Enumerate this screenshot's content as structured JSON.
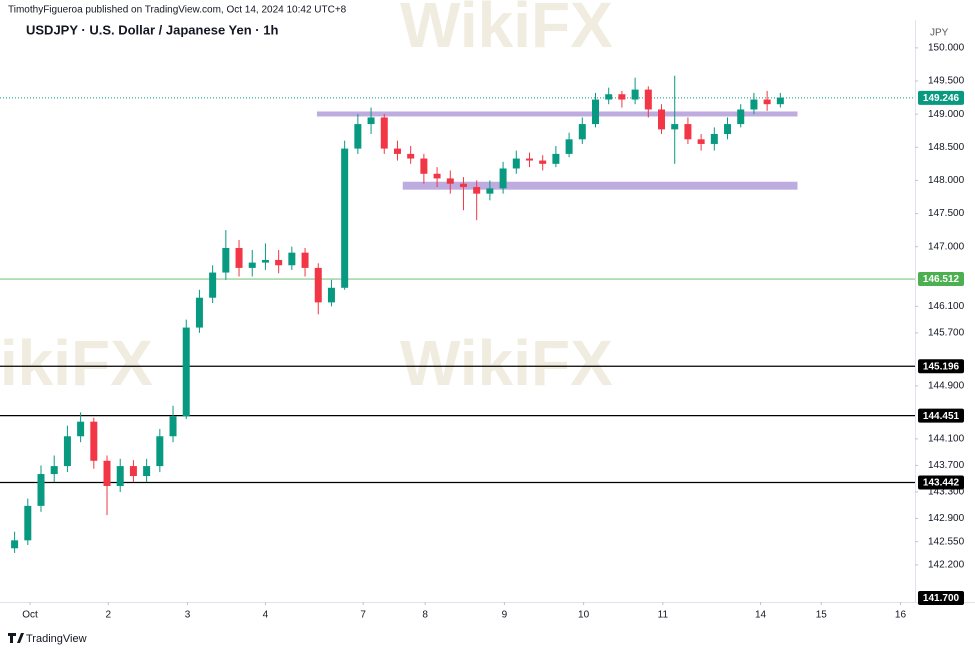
{
  "chart_data": {
    "type": "candlestick",
    "header": "TimothyFigueroa published on TradingView.com, Oct 14, 2024 10:42 UTC+8",
    "title": "USDJPY · U.S. Dollar / Japanese Yen · 1h",
    "y_unit": "JPY",
    "watermark": "WikiFX",
    "footer": "TradingView",
    "up_color": "#089981",
    "down_color": "#f23645",
    "xlim": [
      0,
      68.7
    ],
    "xticks": [
      {
        "value": 1.67,
        "label": "Oct"
      },
      {
        "value": 7.6,
        "label": "2"
      },
      {
        "value": 13.6,
        "label": "3"
      },
      {
        "value": 19.5,
        "label": "4"
      },
      {
        "value": 26.9,
        "label": "7"
      },
      {
        "value": 31.6,
        "label": "8"
      },
      {
        "value": 37.6,
        "label": "9"
      },
      {
        "value": 43.6,
        "label": "10"
      },
      {
        "value": 49.6,
        "label": "11"
      },
      {
        "value": 57.0,
        "label": "14"
      },
      {
        "value": 61.6,
        "label": "15"
      },
      {
        "value": 67.6,
        "label": "16"
      }
    ],
    "ylim": [
      141.7,
      150.42
    ],
    "yticks": [
      {
        "value": 150,
        "label": "150.000"
      },
      {
        "value": 149.5,
        "label": "149.500"
      },
      {
        "value": 149,
        "label": "149.000"
      },
      {
        "value": 148.5,
        "label": "148.500"
      },
      {
        "value": 148,
        "label": "148.000"
      },
      {
        "value": 147.5,
        "label": "147.500"
      },
      {
        "value": 147,
        "label": "147.000"
      },
      {
        "value": 146.1,
        "label": "146.100"
      },
      {
        "value": 145.7,
        "label": "145.700"
      },
      {
        "value": 144.9,
        "label": "144.900"
      },
      {
        "value": 144.1,
        "label": "144.100"
      },
      {
        "value": 143.7,
        "label": "143.700"
      },
      {
        "value": 143.3,
        "label": "143.300"
      },
      {
        "value": 142.9,
        "label": "142.900"
      },
      {
        "value": 142.55,
        "label": "142.550"
      },
      {
        "value": 142.2,
        "label": "142.200"
      }
    ],
    "open": [
      142.45,
      142.57,
      143.09,
      143.57,
      143.69,
      144.14,
      144.36,
      143.77,
      143.39,
      143.69,
      143.54,
      143.69,
      144.14,
      144.44,
      145.78,
      146.23,
      146.61,
      146.98,
      146.68,
      146.76,
      146.8,
      146.72,
      146.91,
      146.68,
      146.16,
      146.38,
      148.48,
      148.85,
      148.95,
      148.48,
      148.4,
      148.33,
      148.1,
      148.03,
      147.95,
      147.9,
      147.8,
      147.88,
      148.18,
      148.33,
      148.3,
      148.25,
      148.4,
      148.62,
      148.85,
      149.22,
      149.3,
      149.22,
      149.37,
      149.07,
      148.77,
      148.85,
      148.62,
      148.55,
      148.7,
      148.85,
      149.07,
      149.22,
      149.15
    ],
    "high": [
      142.7,
      143.2,
      143.7,
      143.85,
      144.3,
      144.5,
      144.42,
      143.85,
      143.8,
      143.78,
      143.8,
      144.25,
      144.6,
      145.9,
      146.35,
      146.72,
      147.25,
      147.1,
      146.95,
      147.05,
      146.95,
      147.0,
      146.98,
      146.75,
      146.5,
      148.6,
      149.0,
      149.1,
      149.0,
      148.6,
      148.52,
      148.4,
      148.2,
      148.15,
      148.05,
      148.0,
      148.0,
      148.28,
      148.45,
      148.42,
      148.38,
      148.52,
      148.72,
      148.95,
      149.32,
      149.4,
      149.35,
      149.55,
      149.42,
      149.15,
      149.58,
      148.95,
      148.7,
      148.8,
      148.95,
      149.15,
      149.32,
      149.35,
      149.32
    ],
    "low": [
      142.38,
      142.5,
      143.0,
      143.45,
      143.6,
      144.05,
      143.65,
      142.95,
      143.3,
      143.45,
      143.45,
      143.6,
      144.05,
      144.4,
      145.7,
      146.15,
      146.5,
      146.55,
      146.55,
      146.65,
      146.6,
      146.65,
      146.55,
      145.98,
      146.1,
      146.35,
      148.4,
      148.7,
      148.4,
      148.3,
      148.25,
      147.95,
      147.9,
      147.8,
      147.55,
      147.4,
      147.7,
      147.8,
      148.1,
      148.2,
      148.15,
      148.2,
      148.35,
      148.55,
      148.8,
      149.15,
      149.1,
      149.15,
      148.95,
      148.7,
      148.25,
      148.55,
      148.45,
      148.45,
      148.62,
      148.8,
      149.0,
      149.05,
      149.1
    ],
    "close": [
      142.57,
      143.09,
      143.57,
      143.69,
      144.14,
      144.36,
      143.77,
      143.39,
      143.69,
      143.54,
      143.69,
      144.14,
      144.44,
      145.78,
      146.23,
      146.61,
      146.98,
      146.68,
      146.76,
      146.8,
      146.72,
      146.91,
      146.68,
      146.16,
      146.38,
      148.48,
      148.85,
      148.95,
      148.48,
      148.4,
      148.33,
      148.1,
      148.03,
      147.95,
      147.9,
      147.8,
      147.88,
      148.18,
      148.33,
      148.3,
      148.25,
      148.4,
      148.62,
      148.85,
      149.22,
      149.3,
      149.22,
      149.37,
      149.07,
      148.77,
      148.85,
      148.62,
      148.55,
      148.7,
      148.85,
      149.07,
      149.22,
      149.15,
      149.25
    ],
    "levels": [
      {
        "value": 149.246,
        "label": "149.246",
        "color": "#089981",
        "line": "dotted"
      },
      {
        "value": 146.512,
        "label": "146.512",
        "color": "#4caf50",
        "line": "solid"
      },
      {
        "value": 145.196,
        "label": "145.196",
        "color": "#000000",
        "line": "solid"
      },
      {
        "value": 144.451,
        "label": "144.451",
        "color": "#000000",
        "line": "solid"
      },
      {
        "value": 143.442,
        "label": "143.442",
        "color": "#000000",
        "line": "solid"
      },
      {
        "value": 141.7,
        "label": "141.700",
        "color": "#000000",
        "line": "none"
      }
    ],
    "zones": [
      {
        "x_from": 23.4,
        "x_to": 59.8,
        "low": 148.97,
        "high": 149.04,
        "color": "#b39ddb"
      },
      {
        "x_from": 29.9,
        "x_to": 59.8,
        "low": 147.86,
        "high": 147.98,
        "color": "#b39ddb"
      }
    ]
  }
}
